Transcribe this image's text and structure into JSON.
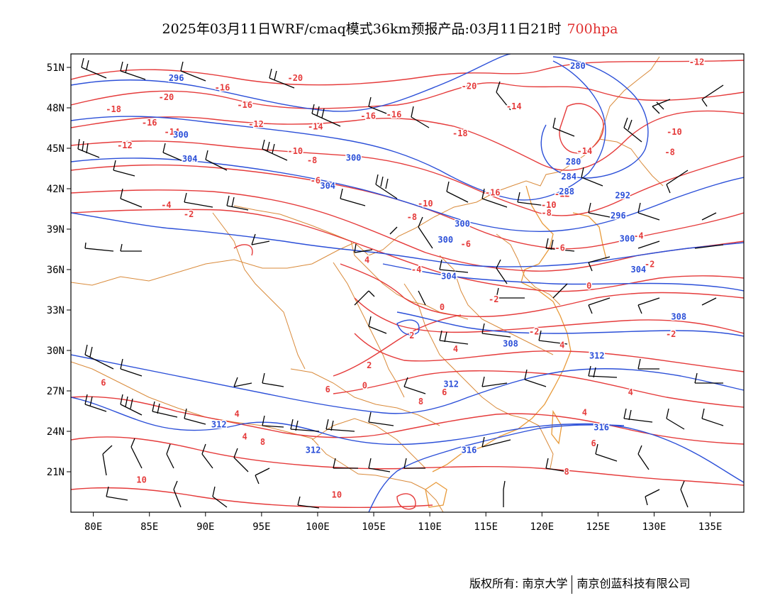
{
  "title": {
    "main": "2025年03月11日WRF/cmaq模式36km预报产品:03月11日21时",
    "level": "700hpa"
  },
  "colors": {
    "temperature": "#e53b3b",
    "geopotential": "#2b4fd8",
    "wind": "#000000",
    "borders": "#d98a3a",
    "frame": "#000000"
  },
  "axes": {
    "lat_labels": [
      "51N",
      "48N",
      "45N",
      "42N",
      "39N",
      "36N",
      "33N",
      "30N",
      "27N",
      "24N",
      "21N"
    ],
    "lat_values": [
      51,
      48,
      45,
      42,
      39,
      36,
      33,
      30,
      27,
      24,
      21
    ],
    "lon_labels": [
      "80E",
      "85E",
      "90E",
      "95E",
      "100E",
      "105E",
      "110E",
      "115E",
      "120E",
      "125E",
      "130E",
      "135E"
    ],
    "lon_values": [
      80,
      85,
      90,
      95,
      100,
      105,
      110,
      115,
      120,
      125,
      130,
      135
    ],
    "lon_range": [
      78,
      138
    ],
    "lat_range": [
      18,
      52
    ]
  },
  "isotherm_labels": [
    {
      "text": "-20",
      "lon": 86.5,
      "lat": 48.8
    },
    {
      "text": "-20",
      "lon": 98,
      "lat": 50.2
    },
    {
      "text": "-20",
      "lon": 113.5,
      "lat": 49.6
    },
    {
      "text": "-12",
      "lon": 133.8,
      "lat": 51.4
    },
    {
      "text": "-18",
      "lon": 81.8,
      "lat": 47.9
    },
    {
      "text": "-16",
      "lon": 85,
      "lat": 46.9
    },
    {
      "text": "-16",
      "lon": 91.5,
      "lat": 49.5
    },
    {
      "text": "-16",
      "lon": 93.5,
      "lat": 48.2
    },
    {
      "text": "-16",
      "lon": 104.5,
      "lat": 47.4
    },
    {
      "text": "-16",
      "lon": 106.8,
      "lat": 47.5
    },
    {
      "text": "-14",
      "lon": 87,
      "lat": 46.2
    },
    {
      "text": "-14",
      "lon": 99.8,
      "lat": 46.6
    },
    {
      "text": "-12",
      "lon": 82.8,
      "lat": 45.2
    },
    {
      "text": "-12",
      "lon": 94.5,
      "lat": 46.8
    },
    {
      "text": "-14",
      "lon": 117.5,
      "lat": 48.1
    },
    {
      "text": "-14",
      "lon": 123.8,
      "lat": 44.8
    },
    {
      "text": "-10",
      "lon": 131.8,
      "lat": 46.2
    },
    {
      "text": "-8",
      "lon": 131.4,
      "lat": 44.7
    },
    {
      "text": "-18",
      "lon": 112.7,
      "lat": 46.1
    },
    {
      "text": "-10",
      "lon": 98,
      "lat": 44.8
    },
    {
      "text": "-8",
      "lon": 99.5,
      "lat": 44.1
    },
    {
      "text": "-6",
      "lon": 99.8,
      "lat": 42.6
    },
    {
      "text": "-4",
      "lon": 86.5,
      "lat": 40.8
    },
    {
      "text": "-2",
      "lon": 88.5,
      "lat": 40.1
    },
    {
      "text": "-16",
      "lon": 115.6,
      "lat": 41.7
    },
    {
      "text": "-10",
      "lon": 109.6,
      "lat": 40.9
    },
    {
      "text": "-8",
      "lon": 108.4,
      "lat": 39.9
    },
    {
      "text": "-12",
      "lon": 121.8,
      "lat": 41.6
    },
    {
      "text": "-10",
      "lon": 120.6,
      "lat": 40.8
    },
    {
      "text": "-8",
      "lon": 120.4,
      "lat": 40.2
    },
    {
      "text": "-6",
      "lon": 113.2,
      "lat": 37.9
    },
    {
      "text": "-6",
      "lon": 121.6,
      "lat": 37.6
    },
    {
      "text": "-4",
      "lon": 128.6,
      "lat": 38.5
    },
    {
      "text": "-2",
      "lon": 129.6,
      "lat": 36.4
    },
    {
      "text": "4",
      "lon": 104.4,
      "lat": 36.7
    },
    {
      "text": "-4",
      "lon": 108.8,
      "lat": 36.0
    },
    {
      "text": "0",
      "lon": 124.2,
      "lat": 34.8
    },
    {
      "text": "-2",
      "lon": 115.7,
      "lat": 33.8
    },
    {
      "text": "0",
      "lon": 111.1,
      "lat": 33.2
    },
    {
      "text": "-2",
      "lon": 131.5,
      "lat": 31.2
    },
    {
      "text": "-2",
      "lon": 119.3,
      "lat": 31.4
    },
    {
      "text": "2",
      "lon": 108.4,
      "lat": 31.1
    },
    {
      "text": "4",
      "lon": 112.3,
      "lat": 30.1
    },
    {
      "text": "4",
      "lon": 121.8,
      "lat": 30.4
    },
    {
      "text": "2",
      "lon": 104.6,
      "lat": 28.9
    },
    {
      "text": "0",
      "lon": 104.2,
      "lat": 27.4
    },
    {
      "text": "6",
      "lon": 100.9,
      "lat": 27.1
    },
    {
      "text": "6",
      "lon": 111.3,
      "lat": 26.9
    },
    {
      "text": "8",
      "lon": 109.2,
      "lat": 26.2
    },
    {
      "text": "6",
      "lon": 80.9,
      "lat": 27.6
    },
    {
      "text": "4",
      "lon": 92.8,
      "lat": 25.3
    },
    {
      "text": "4",
      "lon": 123.8,
      "lat": 25.4
    },
    {
      "text": "4",
      "lon": 127.9,
      "lat": 26.9
    },
    {
      "text": "4",
      "lon": 93.5,
      "lat": 23.6
    },
    {
      "text": "8",
      "lon": 95.1,
      "lat": 23.2
    },
    {
      "text": "6",
      "lon": 124.6,
      "lat": 23.1
    },
    {
      "text": "8",
      "lon": 122.2,
      "lat": 21.0
    },
    {
      "text": "10",
      "lon": 84.3,
      "lat": 20.4
    },
    {
      "text": "10",
      "lon": 101.7,
      "lat": 19.3
    }
  ],
  "isohypse_labels": [
    {
      "text": "296",
      "lon": 87.4,
      "lat": 50.2
    },
    {
      "text": "280",
      "lon": 123.2,
      "lat": 51.1
    },
    {
      "text": "300",
      "lon": 87.8,
      "lat": 46.0
    },
    {
      "text": "304",
      "lon": 88.6,
      "lat": 44.2
    },
    {
      "text": "300",
      "lon": 103.2,
      "lat": 44.3
    },
    {
      "text": "280",
      "lon": 122.8,
      "lat": 44.0
    },
    {
      "text": "284",
      "lon": 122.4,
      "lat": 42.9
    },
    {
      "text": "288",
      "lon": 122.2,
      "lat": 41.8
    },
    {
      "text": "292",
      "lon": 127.2,
      "lat": 41.5
    },
    {
      "text": "296",
      "lon": 126.8,
      "lat": 40.0
    },
    {
      "text": "304",
      "lon": 100.9,
      "lat": 42.2
    },
    {
      "text": "300",
      "lon": 112.9,
      "lat": 39.4
    },
    {
      "text": "300",
      "lon": 127.6,
      "lat": 38.3
    },
    {
      "text": "300",
      "lon": 111.4,
      "lat": 38.2
    },
    {
      "text": "304",
      "lon": 128.6,
      "lat": 36.0
    },
    {
      "text": "304",
      "lon": 111.7,
      "lat": 35.5
    },
    {
      "text": "308",
      "lon": 132.2,
      "lat": 32.5
    },
    {
      "text": "308",
      "lon": 117.2,
      "lat": 30.5
    },
    {
      "text": "312",
      "lon": 124.9,
      "lat": 29.6
    },
    {
      "text": "312",
      "lon": 111.9,
      "lat": 27.5
    },
    {
      "text": "312",
      "lon": 91.2,
      "lat": 24.5
    },
    {
      "text": "316",
      "lon": 125.3,
      "lat": 24.3
    },
    {
      "text": "312",
      "lon": 99.6,
      "lat": 22.6
    },
    {
      "text": "316",
      "lon": 113.5,
      "lat": 22.6
    }
  ],
  "footer": {
    "left": "版权所有: 南京大学",
    "right": "南京创蓝科技有限公司"
  }
}
